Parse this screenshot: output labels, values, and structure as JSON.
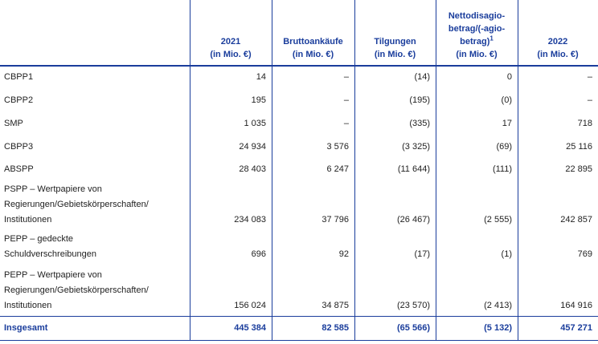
{
  "table": {
    "header": [
      {
        "lines": []
      },
      {
        "lines": [
          "2021",
          "(in Mio. €)"
        ]
      },
      {
        "lines": [
          "Bruttoankäufe",
          "(in Mio. €)"
        ]
      },
      {
        "lines": [
          "Tilgungen",
          "(in Mio. €)"
        ]
      },
      {
        "lines": [
          "Nettodisagio-",
          "betrag/(-agio-",
          "betrag)",
          "(in Mio. €)"
        ],
        "footnote": "1"
      },
      {
        "lines": [
          "2022",
          "(in Mio. €)"
        ]
      }
    ],
    "rows": [
      {
        "label": [
          "CBPP1"
        ],
        "values": [
          "14",
          "–",
          "(14)",
          "0",
          "–"
        ]
      },
      {
        "label": [
          "CBPP2"
        ],
        "values": [
          "195",
          "–",
          "(195)",
          "(0)",
          "–"
        ]
      },
      {
        "label": [
          "SMP"
        ],
        "values": [
          "1 035",
          "–",
          "(335)",
          "17",
          "718"
        ]
      },
      {
        "label": [
          "CBPP3"
        ],
        "values": [
          "24 934",
          "3 576",
          "(3 325)",
          "(69)",
          "25 116"
        ]
      },
      {
        "label": [
          "ABSPP"
        ],
        "values": [
          "28 403",
          "6 247",
          "(11 644)",
          "(111)",
          "22 895"
        ]
      },
      {
        "label": [
          "PSPP – Wertpapiere von",
          "Regierungen/Gebietskörperschaften/",
          "Institutionen"
        ],
        "values": [
          "234 083",
          "37 796",
          "(26 467)",
          "(2 555)",
          "242 857"
        ]
      },
      {
        "label": [
          "PEPP – gedeckte",
          "Schuldverschreibungen"
        ],
        "values": [
          "696",
          "92",
          "(17)",
          "(1)",
          "769"
        ]
      },
      {
        "label": [
          "PEPP – Wertpapiere von",
          "Regierungen/Gebietskörperschaften/",
          "Institutionen"
        ],
        "values": [
          "156 024",
          "34 875",
          "(23 570)",
          "(2 413)",
          "164 916"
        ]
      }
    ],
    "total": {
      "label": [
        "Insgesamt"
      ],
      "values": [
        "445 384",
        "82 585",
        "(65 566)",
        "(5 132)",
        "457 271"
      ]
    }
  }
}
